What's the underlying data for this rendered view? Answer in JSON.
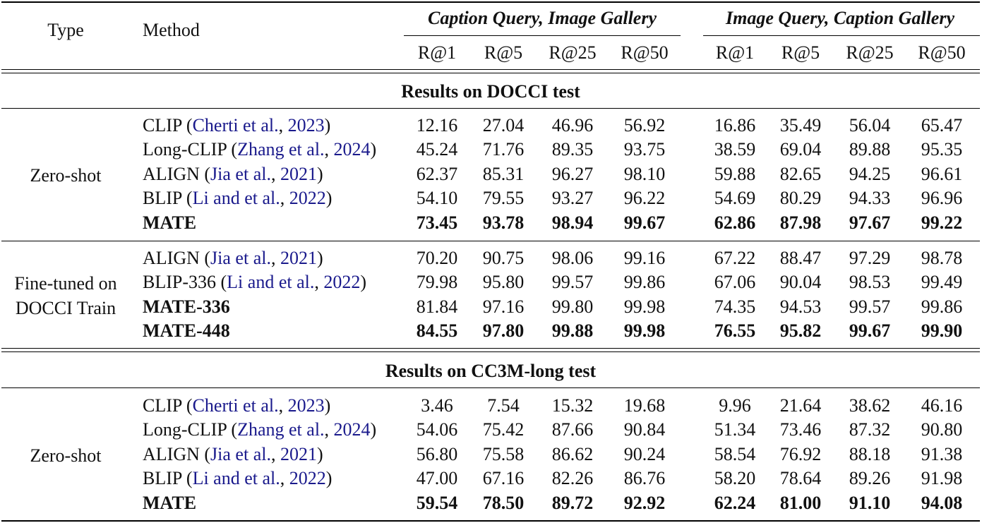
{
  "header": {
    "type": "Type",
    "method": "Method",
    "group1": "Caption Query, Image Gallery",
    "group2": "Image Query, Caption Gallery",
    "metrics": [
      "R@1",
      "R@5",
      "R@25",
      "R@50",
      "R@1",
      "R@5",
      "R@25",
      "R@50"
    ]
  },
  "sections": [
    {
      "title": "Results on DOCCI test",
      "groups": [
        {
          "type_lines": [
            "Zero-shot"
          ],
          "rows": [
            {
              "name": "CLIP",
              "cite_open": " (",
              "cite_authors": "Cherti et al.",
              "cite_sep": ", ",
              "cite_year": "2023",
              "cite_close": ")",
              "bold": false,
              "values": [
                "12.16",
                "27.04",
                "46.96",
                "56.92",
                "16.86",
                "35.49",
                "56.04",
                "65.47"
              ]
            },
            {
              "name": "Long-CLIP",
              "cite_open": " (",
              "cite_authors": "Zhang et al.",
              "cite_sep": ", ",
              "cite_year": "2024",
              "cite_close": ")",
              "bold": false,
              "values": [
                "45.24",
                "71.76",
                "89.35",
                "93.75",
                "38.59",
                "69.04",
                "89.88",
                "95.35"
              ]
            },
            {
              "name": "ALIGN",
              "cite_open": " (",
              "cite_authors": "Jia et al.",
              "cite_sep": ", ",
              "cite_year": "2021",
              "cite_close": ")",
              "bold": false,
              "values": [
                "62.37",
                "85.31",
                "96.27",
                "98.10",
                "59.88",
                "82.65",
                "94.25",
                "96.61"
              ]
            },
            {
              "name": "BLIP",
              "cite_open": " (",
              "cite_authors": "Li and et al.",
              "cite_sep": ", ",
              "cite_year": "2022",
              "cite_close": ")",
              "bold": false,
              "values": [
                "54.10",
                "79.55",
                "93.27",
                "96.22",
                "54.69",
                "80.29",
                "94.33",
                "96.96"
              ]
            },
            {
              "name": "MATE",
              "bold": true,
              "values": [
                "73.45",
                "93.78",
                "98.94",
                "99.67",
                "62.86",
                "87.98",
                "97.67",
                "99.22"
              ]
            }
          ]
        },
        {
          "type_lines": [
            "Fine-tuned on",
            "DOCCI Train"
          ],
          "rows": [
            {
              "name": "ALIGN",
              "cite_open": " (",
              "cite_authors": "Jia et al.",
              "cite_sep": ", ",
              "cite_year": "2021",
              "cite_close": ")",
              "bold": false,
              "values": [
                "70.20",
                "90.75",
                "98.06",
                "99.16",
                "67.22",
                "88.47",
                "97.29",
                "98.78"
              ]
            },
            {
              "name": "BLIP-336",
              "cite_open": " (",
              "cite_authors": "Li and et al.",
              "cite_sep": ", ",
              "cite_year": "2022",
              "cite_close": ")",
              "bold": false,
              "values": [
                "79.98",
                "95.80",
                "99.57",
                "99.86",
                "67.06",
                "90.04",
                "98.53",
                "99.49"
              ]
            },
            {
              "name": "MATE-336",
              "bold": true,
              "values_bold": false,
              "values": [
                "81.84",
                "97.16",
                "99.80",
                "99.98",
                "74.35",
                "94.53",
                "99.57",
                "99.86"
              ]
            },
            {
              "name": "MATE-448",
              "bold": true,
              "values": [
                "84.55",
                "97.80",
                "99.88",
                "99.98",
                "76.55",
                "95.82",
                "99.67",
                "99.90"
              ]
            }
          ]
        }
      ]
    },
    {
      "title": "Results on CC3M-long test",
      "groups": [
        {
          "type_lines": [
            "Zero-shot"
          ],
          "rows": [
            {
              "name": "CLIP",
              "cite_open": " (",
              "cite_authors": "Cherti et al.",
              "cite_sep": ", ",
              "cite_year": "2023",
              "cite_close": ")",
              "bold": false,
              "values": [
                "3.46",
                "7.54",
                "15.32",
                "19.68",
                "9.96",
                "21.64",
                "38.62",
                "46.16"
              ]
            },
            {
              "name": "Long-CLIP",
              "cite_open": " (",
              "cite_authors": "Zhang et al.",
              "cite_sep": ", ",
              "cite_year": "2024",
              "cite_close": ")",
              "bold": false,
              "values": [
                "54.06",
                "75.42",
                "87.66",
                "90.84",
                "51.34",
                "73.46",
                "87.32",
                "90.80"
              ]
            },
            {
              "name": "ALIGN",
              "cite_open": " (",
              "cite_authors": "Jia et al.",
              "cite_sep": ", ",
              "cite_year": "2021",
              "cite_close": ")",
              "bold": false,
              "values": [
                "56.80",
                "75.58",
                "86.62",
                "90.24",
                "58.54",
                "76.92",
                "88.18",
                "91.38"
              ]
            },
            {
              "name": "BLIP",
              "cite_open": " (",
              "cite_authors": "Li and et al.",
              "cite_sep": ", ",
              "cite_year": "2022",
              "cite_close": ")",
              "bold": false,
              "values": [
                "47.00",
                "67.16",
                "82.26",
                "86.76",
                "58.20",
                "78.64",
                "89.26",
                "91.98"
              ]
            },
            {
              "name": "MATE",
              "bold": true,
              "values": [
                "59.54",
                "78.50",
                "89.72",
                "92.92",
                "62.24",
                "81.00",
                "91.10",
                "94.08"
              ]
            }
          ]
        }
      ]
    }
  ]
}
